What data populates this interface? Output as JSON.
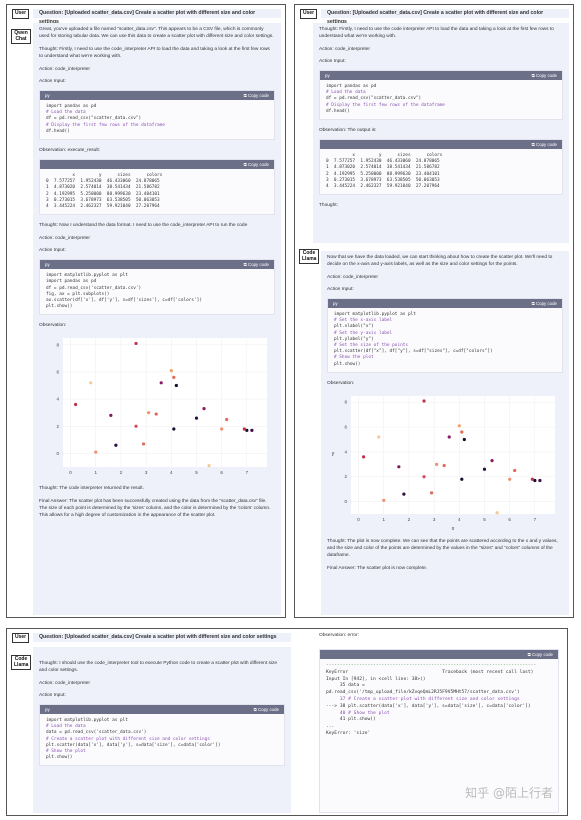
{
  "user_tag": "User",
  "qwen_tag": "Qwen Chat",
  "code_llama_tag": "Code Llama",
  "question": "Question: [Uploaded scatter_data.csv] Create a scatter plot with different size and color settings",
  "copy_label": "Copy code",
  "code_lang": "py",
  "p1": {
    "intro": "Great, you've uploaded a file named \"scatter_data.csv\". This appears to be a CSV file, which is commonly used for storing tabular data. We can use this data to create a scatter plot with different size and color settings.",
    "thought1": "Thought: Firstly, I need to use the code_interpreter API to load the data and taking a look at the first few rows to understand what we're working with.",
    "action": "Action: code_interpreter",
    "action_input": "Action Input:",
    "code1": [
      "import pandas as pd",
      "# Load the data",
      "df = pd.read_csv(\"scatter_data.csv\")",
      "# Display the first few rows of the dataframe",
      "df.head()"
    ],
    "observation_exec": "Observation: execute_result:",
    "table": [
      "          x         y      sizes      colors",
      "0  7.577257  1.952430  46.433060  24.878065",
      "1  4.873020  2.574014  38.541434  21.586782",
      "2  4.192995  5.250000  88.999630  23.404101",
      "3  0.273015  3.678973  63.538505  50.063053",
      "4  3.445224  2.462327  59.921040  27.207964"
    ],
    "thought2": "Thought: Now I understand the data format. I need to use the code_interpreter API to run the code",
    "code2": [
      "import matplotlib.pyplot as plt",
      "import pandas as pd",
      "",
      "df = pd.read_csv('scatter_data.csv')",
      "",
      "fig, ax = plt.subplots()",
      "",
      "ax.scatter(df['x'], df['y'], s=df['sizes'], c=df['colors'])",
      "",
      "plt.show()"
    ],
    "observation": "Observation:",
    "thought3": "Thought: The code interpreter returned the result.",
    "final": "Final Answer: The scatter plot has been successfully created using the data from the \"scatter_data.csv\" file. The size of each point is determined by the 'sizes' column, and the color is determined by the 'colors' column. This allows for a high degree of customization in the appearance of the scatter plot."
  },
  "p2": {
    "thought1": "Thought: Firstly, I need to use the code interpreter API to load the data and taking a look at the first few rows to understand what we're working with.",
    "action": "Action: code_interpreter",
    "action_input": "Action Input:",
    "code1": [
      "import pandas as pd",
      "# Load the data",
      "df = pd.read_csv(\"scatter_data.csv\")",
      "# Display the first few rows of the dataframe",
      "df.head()"
    ],
    "observation_output": "Observation: The output is:",
    "table": [
      "          x         y      sizes      colors",
      "0  7.577257  1.952430  46.433060  24.878065",
      "1  4.873020  2.574014  38.541434  21.586782",
      "2  4.192995  5.250000  88.999630  23.404101",
      "3  0.273015  3.678973  63.538505  50.063053",
      "4  3.445224  2.462327  59.921040  27.207964"
    ],
    "thought_short": "Thought:",
    "thought2": "Now that we have the data loaded, we can start thinking about how to create the scatter plot. We'll need to decide on the x-axis and y-axis labels, as well as the size and color settings for the points.",
    "code2": [
      "import matplotlib.pyplot as plt",
      "# Set the x-axis label",
      "plt.xlabel(\"x\")",
      "# Set the y-axis label",
      "plt.ylabel(\"y\")",
      "# Set the size of the points",
      "plt.scatter(df[\"x\"], df[\"y\"], s=df[\"sizes\"], c=df[\"colors\"])",
      "# Show the plot",
      "plt.show()"
    ],
    "observation": "Observation:",
    "thought3": "Thought: The plot is now complete. We can see that the points are scattered according to the x and y values, and the size and color of the points are determined by the values in the \"sizes\" and \"colors\" columns of the dataframe.",
    "final": "Final Answer: The scatter plot is now complete."
  },
  "p3": {
    "thought": "Thought: I should use the code_interpreter tool to execute Python code to create a scatter plot with different size and color settings.",
    "action": "Action: code_interpreter",
    "action_input": "Action Input:",
    "code": [
      "import matplotlib.pyplot as plt",
      "",
      "# Load the data",
      "data = pd.read_csv('scatter_data.csv')",
      "",
      "# Create a scatter plot with different size and color settings",
      "plt.scatter(data['x'], data['y'], s=data['size'], c=data['color'])",
      "",
      "# Show the plot",
      "plt.show()"
    ],
    "observation_error": "Observation: error:",
    "error_lines": [
      "----------------------------------------------------------------------------",
      "",
      "KeyError                                  Traceback (most recent call last)",
      "Input In [942], in <cell line: 38>()",
      "     35 data = pd.read_csv('/tmp_upload_file/kZvqeQmL2RJ5F9V5MHt57/scatter_data.csv')",
      "     37 # Create a scatter plot with different size and color settings",
      "---> 38 plt.scatter(data['x'], data['y'], s=data['size'], c=data['color'])",
      "     40 # Show the plot",
      "     41 plt.show()",
      "",
      "...",
      "",
      "KeyError: 'size'"
    ]
  },
  "watermark": "知乎 @陌上行者",
  "chart_data": [
    {
      "type": "scatter",
      "xlim": [
        -0.3,
        7.8
      ],
      "ylim": [
        -1,
        8.5
      ],
      "xticks": [
        0,
        1,
        2,
        3,
        4,
        5,
        6,
        7
      ],
      "yticks": [
        0,
        2,
        4,
        6,
        8
      ],
      "xlabel": "",
      "ylabel": "",
      "points": [
        [
          2.6,
          8.1,
          "#c0304e"
        ],
        [
          0.8,
          5.2,
          "#f5c89a"
        ],
        [
          4.0,
          6.1,
          "#f4a06a"
        ],
        [
          4.1,
          5.6,
          "#e06a5a"
        ],
        [
          4.2,
          5.0,
          "#1a0d2e"
        ],
        [
          3.6,
          5.2,
          "#8a1c62"
        ],
        [
          0.2,
          3.6,
          "#c0304e"
        ],
        [
          1.6,
          2.8,
          "#7a1d5c"
        ],
        [
          3.1,
          3.0,
          "#f09070"
        ],
        [
          3.4,
          2.9,
          "#e8605a"
        ],
        [
          2.6,
          2.0,
          "#d94c55"
        ],
        [
          4.1,
          1.8,
          "#1a0d2e"
        ],
        [
          5.3,
          3.3,
          "#8a1c62"
        ],
        [
          5.0,
          2.6,
          "#2a1040"
        ],
        [
          6.2,
          2.5,
          "#e06a5a"
        ],
        [
          6.0,
          1.8,
          "#f09070"
        ],
        [
          7.0,
          1.7,
          "#1a0d2e"
        ],
        [
          7.2,
          1.7,
          "#3b0f4e"
        ],
        [
          6.9,
          1.8,
          "#c0304e"
        ],
        [
          1.8,
          0.6,
          "#2a1040"
        ],
        [
          2.9,
          0.7,
          "#e06a5a"
        ],
        [
          5.5,
          -0.9,
          "#f5c89a"
        ],
        [
          1.0,
          0.1,
          "#f09070"
        ]
      ]
    },
    {
      "type": "scatter",
      "xlim": [
        -0.3,
        7.8
      ],
      "ylim": [
        -1,
        8.5
      ],
      "xticks": [
        0,
        1,
        2,
        3,
        4,
        5,
        6,
        7
      ],
      "yticks": [
        0,
        2,
        4,
        6,
        8
      ],
      "xlabel": "x",
      "ylabel": "y",
      "points": [
        [
          2.6,
          8.1,
          "#c0304e"
        ],
        [
          0.8,
          5.2,
          "#f5c89a"
        ],
        [
          4.0,
          6.1,
          "#f4a06a"
        ],
        [
          4.1,
          5.6,
          "#e06a5a"
        ],
        [
          4.2,
          5.0,
          "#1a0d2e"
        ],
        [
          3.6,
          5.2,
          "#8a1c62"
        ],
        [
          0.2,
          3.6,
          "#c0304e"
        ],
        [
          1.6,
          2.8,
          "#7a1d5c"
        ],
        [
          3.1,
          3.0,
          "#f09070"
        ],
        [
          3.4,
          2.9,
          "#e8605a"
        ],
        [
          2.6,
          2.0,
          "#d94c55"
        ],
        [
          4.1,
          1.8,
          "#1a0d2e"
        ],
        [
          5.3,
          3.3,
          "#8a1c62"
        ],
        [
          5.0,
          2.6,
          "#2a1040"
        ],
        [
          6.2,
          2.5,
          "#e06a5a"
        ],
        [
          6.0,
          1.8,
          "#f09070"
        ],
        [
          7.0,
          1.7,
          "#1a0d2e"
        ],
        [
          7.2,
          1.7,
          "#3b0f4e"
        ],
        [
          6.9,
          1.8,
          "#c0304e"
        ],
        [
          1.8,
          0.6,
          "#2a1040"
        ],
        [
          2.9,
          0.7,
          "#e06a5a"
        ],
        [
          5.5,
          -0.9,
          "#f5c89a"
        ],
        [
          1.0,
          0.1,
          "#f09070"
        ]
      ]
    }
  ]
}
